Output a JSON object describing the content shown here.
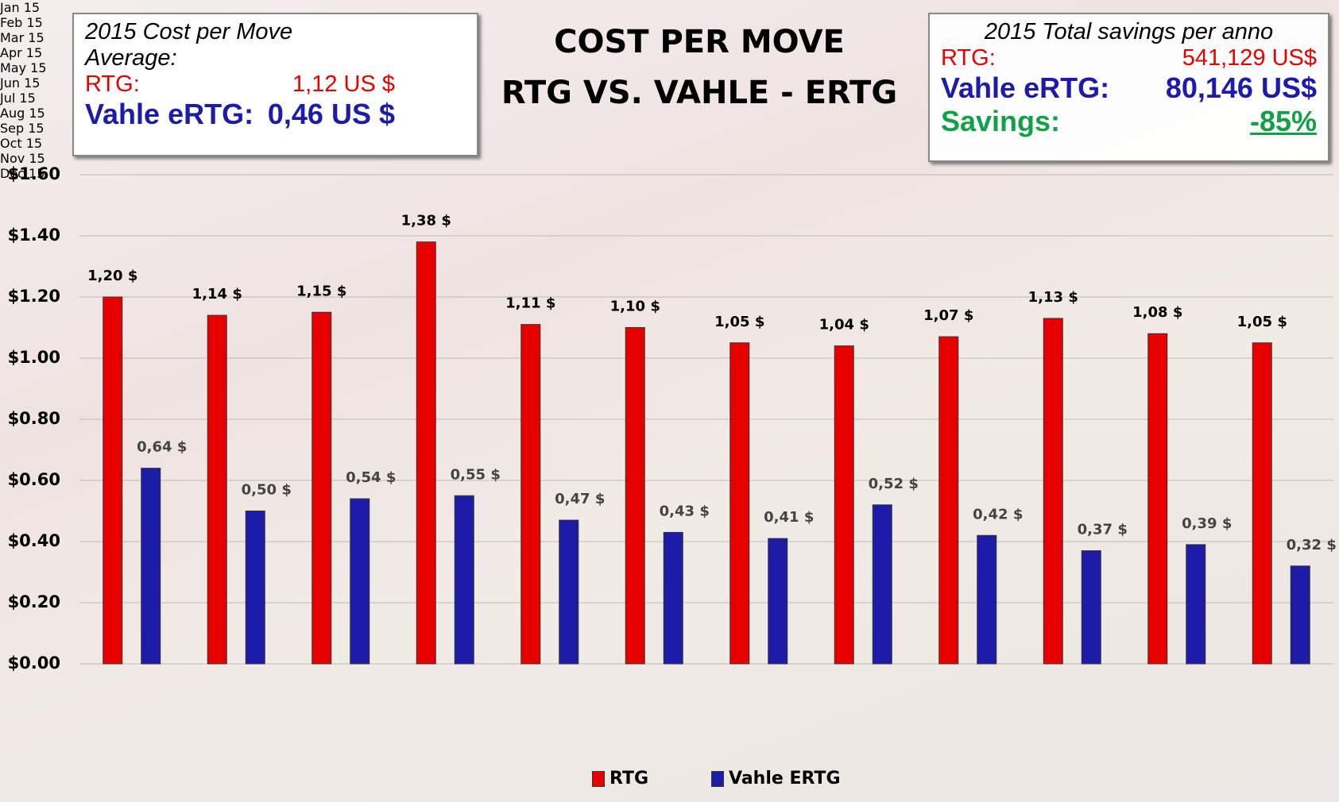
{
  "chart_data": {
    "type": "bar",
    "title": "COST PER MOVE",
    "subtitle": "RTG VS. VAHLE - ERTG",
    "categories": [
      "Jan 15",
      "Feb 15",
      "Mar 15",
      "Apr 15",
      "May 15",
      "Jun 15",
      "Jul 15",
      "Aug 15",
      "Sep 15",
      "Oct 15",
      "Nov 15",
      "Dec 15"
    ],
    "series": [
      {
        "name": "RTG",
        "color": "#e60000",
        "values": [
          1.2,
          1.14,
          1.15,
          1.38,
          1.11,
          1.1,
          1.05,
          1.04,
          1.07,
          1.13,
          1.08,
          1.05
        ],
        "value_labels": [
          "1,20 $",
          "1,14 $",
          "1,15 $",
          "1,38 $",
          "1,11 $",
          "1,10 $",
          "1,05 $",
          "1,04 $",
          "1,07 $",
          "1,13 $",
          "1,08 $",
          "1,05 $"
        ]
      },
      {
        "name": "Vahle ERTG",
        "color": "#1c1ca8",
        "values": [
          0.64,
          0.5,
          0.54,
          0.55,
          0.47,
          0.43,
          0.41,
          0.52,
          0.42,
          0.37,
          0.39,
          0.32
        ],
        "value_labels": [
          "0,64 $",
          "0,50 $",
          "0,54 $",
          "0,55 $",
          "0,47 $",
          "0,43 $",
          "0,41 $",
          "0,52 $",
          "0,42 $",
          "0,37 $",
          "0,39 $",
          "0,32 $"
        ]
      }
    ],
    "ylim": [
      0,
      1.6
    ],
    "yticks": [
      {
        "value": 0,
        "label": "$0.00"
      },
      {
        "value": 0.2,
        "label": "$0.20"
      },
      {
        "value": 0.4,
        "label": "$0.40"
      },
      {
        "value": 0.6,
        "label": "$0.60"
      },
      {
        "value": 0.8,
        "label": "$0.80"
      },
      {
        "value": 1.0,
        "label": "$1.00"
      },
      {
        "value": 1.2,
        "label": "$1.20"
      },
      {
        "value": 1.4,
        "label": "$1.40"
      },
      {
        "value": 1.6,
        "label": "$1.60"
      }
    ],
    "grid": true,
    "legend": "bottom",
    "annotations": [
      {
        "title": "2015 Cost per Move Average:",
        "rows": [
          {
            "label": "RTG:",
            "value": "1,12 US $",
            "color": "#e60000"
          },
          {
            "label": "Vahle eRTG:",
            "value": "0,46 US $",
            "color": "#1c1ca8"
          }
        ]
      },
      {
        "title": "2015 Total savings per anno",
        "rows": [
          {
            "label": "RTG:",
            "value": "541,129 US$",
            "color": "#e60000"
          },
          {
            "label": "Vahle eRTG:",
            "value": "80,146 US$",
            "color": "#1c1ca8"
          },
          {
            "label": "Savings:",
            "value": "-85%",
            "color": "#12a04a"
          }
        ]
      }
    ]
  }
}
